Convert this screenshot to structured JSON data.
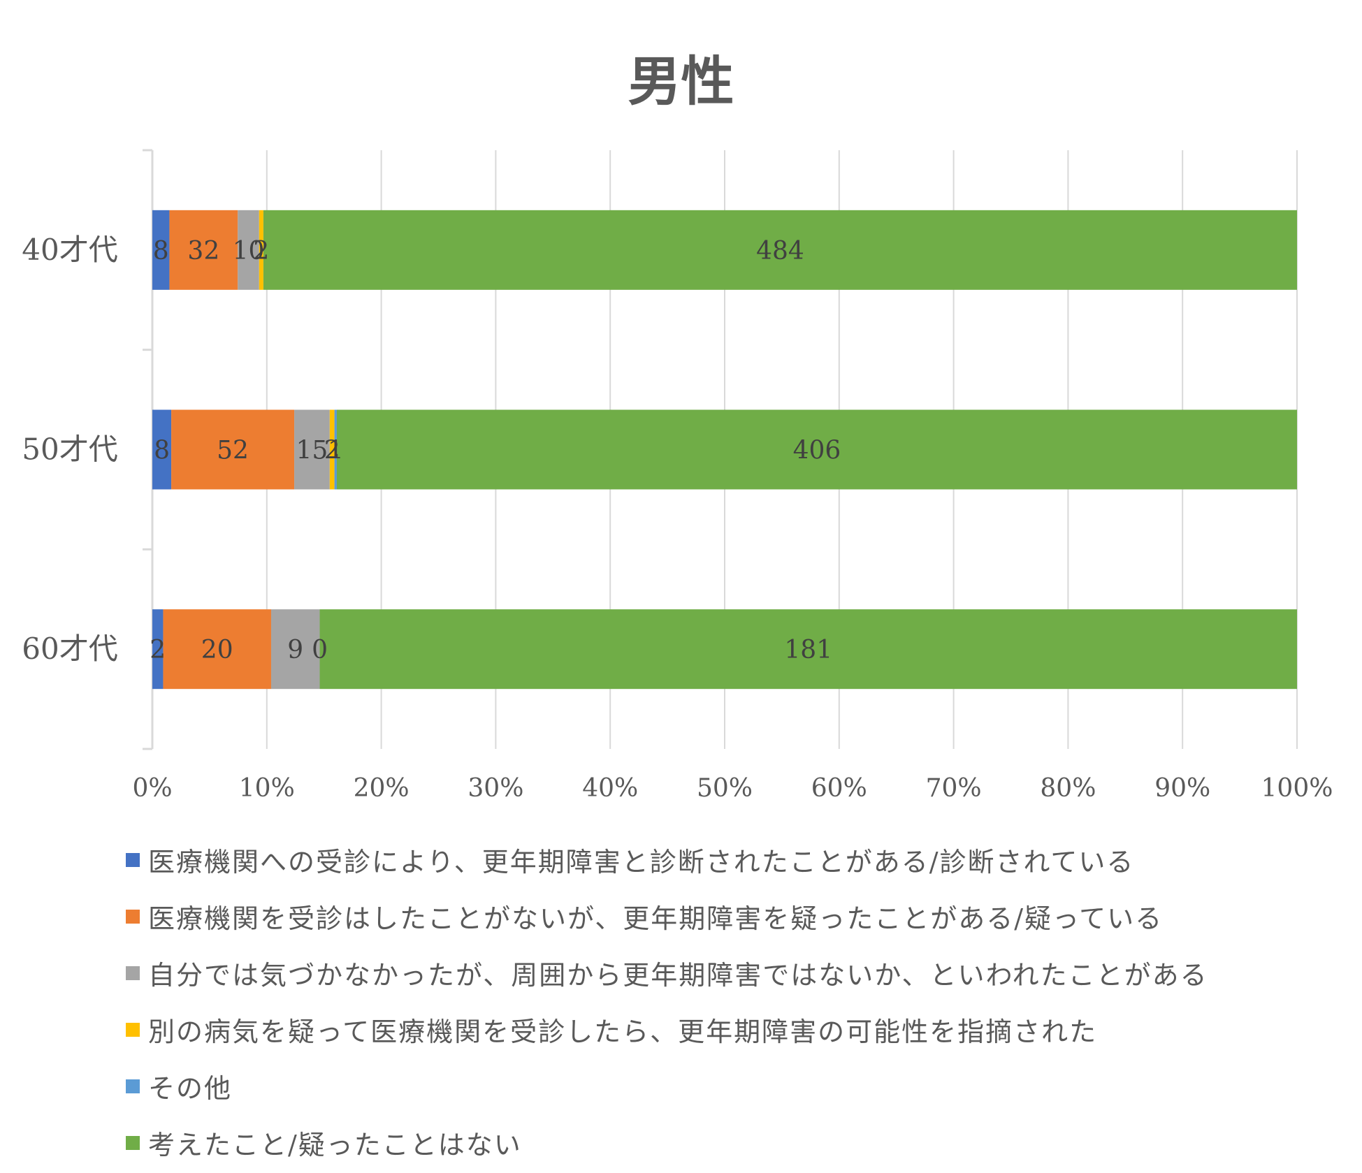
{
  "chart_data": {
    "type": "bar",
    "orientation": "horizontal",
    "stacked": "percent",
    "title": "男性",
    "xlabel": "",
    "ylabel": "",
    "xlim": [
      0,
      100
    ],
    "x_ticks": [
      "0%",
      "10%",
      "20%",
      "30%",
      "40%",
      "50%",
      "60%",
      "70%",
      "80%",
      "90%",
      "100%"
    ],
    "categories": [
      "40才代",
      "50才代",
      "60才代"
    ],
    "grid": true,
    "legend_position": "bottom",
    "series": [
      {
        "name": "医療機関への受診により、更年期障害と診断されたことがある/診断されている",
        "color": "#4472C4",
        "values": [
          8,
          8,
          2
        ]
      },
      {
        "name": "医療機関を受診はしたことがないが、更年期障害を疑ったことがある/疑っている",
        "color": "#ED7D31",
        "values": [
          32,
          52,
          20
        ]
      },
      {
        "name": "自分では気づかなかったが、周囲から更年期障害ではないか、といわれたことがある",
        "color": "#A5A5A5",
        "values": [
          10,
          15,
          9
        ]
      },
      {
        "name": "別の病気を疑って医療機関を受診したら、更年期障害の可能性を指摘された",
        "color": "#FFC000",
        "values": [
          2,
          2,
          0
        ]
      },
      {
        "name": "その他",
        "color": "#5B9BD5",
        "values": [
          0,
          1,
          0
        ]
      },
      {
        "name": "考えたこと/疑ったことはない",
        "color": "#70AD47",
        "values": [
          484,
          406,
          181
        ]
      }
    ]
  }
}
